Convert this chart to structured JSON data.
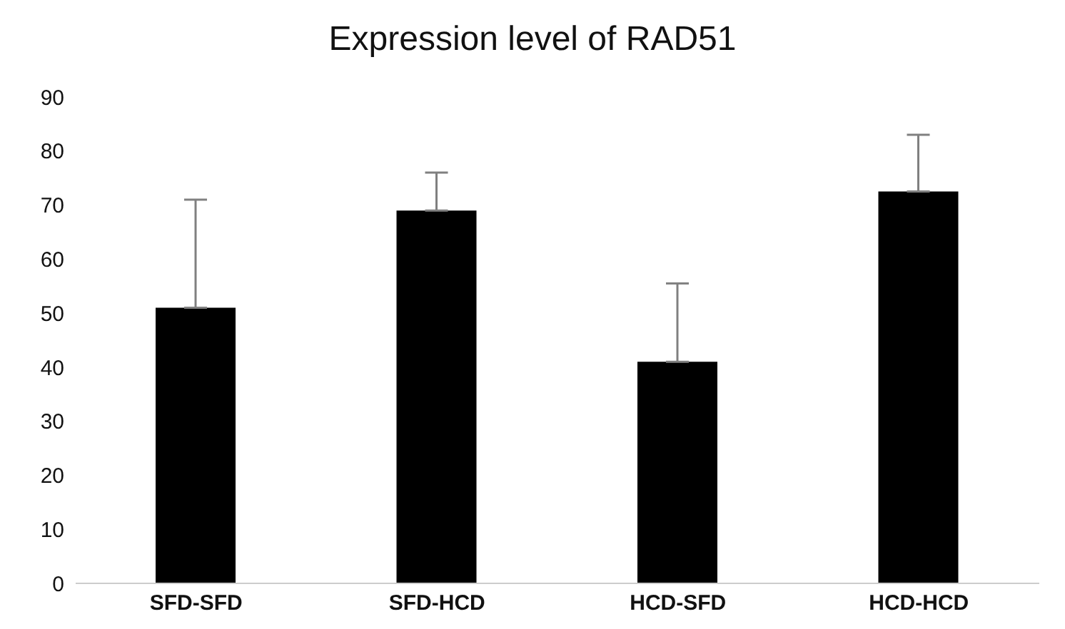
{
  "chart_data": {
    "type": "bar",
    "title": "Expression level of RAD51",
    "categories": [
      "SFD-SFD",
      "SFD-HCD",
      "HCD-SFD",
      "HCD-HCD"
    ],
    "values": [
      51,
      69,
      41,
      72.5
    ],
    "errors": [
      [
        51,
        71
      ],
      [
        69,
        76
      ],
      [
        41,
        55.5
      ],
      [
        72.5,
        83
      ]
    ],
    "color": "#000000",
    "ylim": [
      0,
      90
    ],
    "yticks": [
      0,
      10,
      20,
      30,
      40,
      50,
      60,
      70,
      80,
      90
    ],
    "grid": false
  }
}
